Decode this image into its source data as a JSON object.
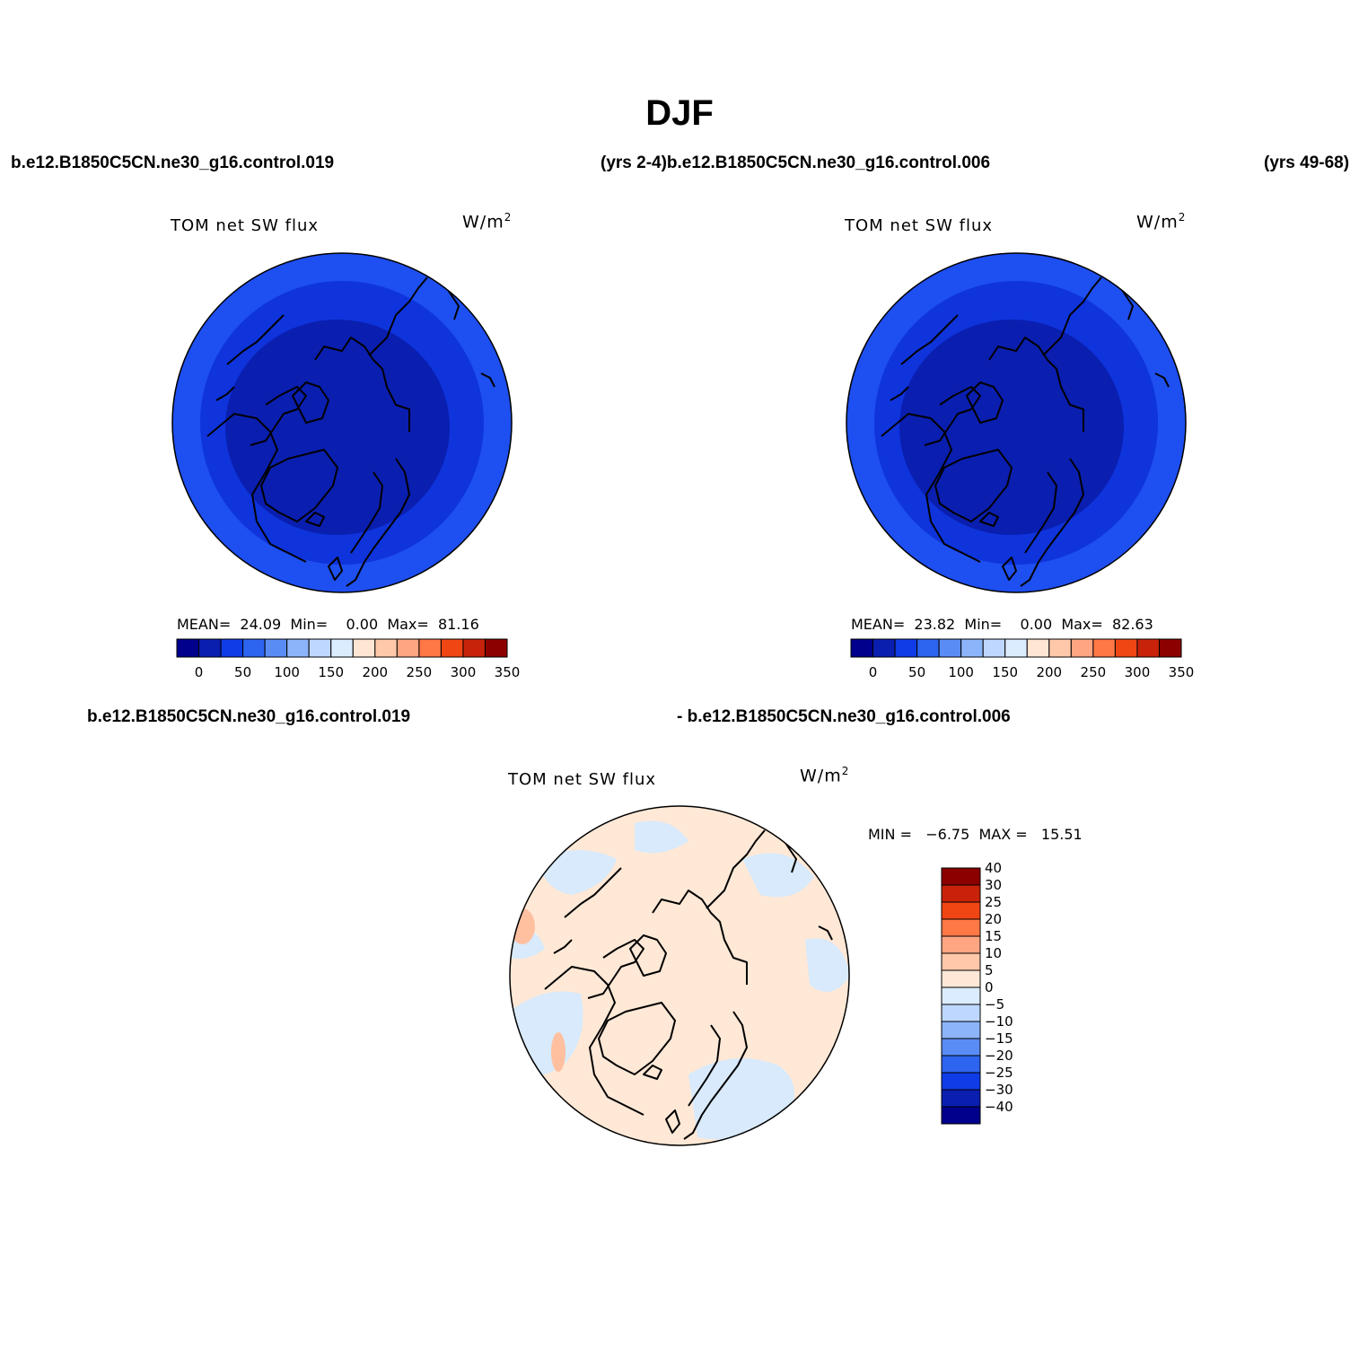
{
  "title": "DJF",
  "header": {
    "case_left": "b.e12.B1850C5CN.ne30_g16.control.019",
    "case_middle": "(yrs 2-4)b.e12.B1850C5CN.ne30_g16.control.006",
    "case_right": "(yrs 49-68)",
    "diff_left": "b.e12.B1850C5CN.ne30_g16.control.019",
    "diff_right": "- b.e12.B1850C5CN.ne30_g16.control.006"
  },
  "panels": [
    {
      "variable": "TOM net SW flux",
      "units": "W/m",
      "units_exp": "2",
      "stats": "MEAN=  24.09  Min=    0.00  Max=  81.16"
    },
    {
      "variable": "TOM net SW flux",
      "units": "W/m",
      "units_exp": "2",
      "stats": "MEAN=  23.82  Min=    0.00  Max=  82.63"
    },
    {
      "variable": "TOM net SW flux",
      "units": "W/m",
      "units_exp": "2",
      "stats": "MIN =   −6.75  MAX =   15.51"
    }
  ],
  "colorbar_main": {
    "colors": [
      "#00008c",
      "#0a1eaf",
      "#0f3ce6",
      "#2d64f0",
      "#5a8cf5",
      "#8cb4fa",
      "#bed7ff",
      "#dcecff",
      "#ffe6d2",
      "#ffc8aa",
      "#ffa582",
      "#ff7846",
      "#f04614",
      "#c8230a",
      "#8c0000"
    ],
    "ticks": [
      "0",
      "50",
      "100",
      "150",
      "200",
      "250",
      "300",
      "350"
    ]
  },
  "colorbar_diff": {
    "colors": [
      "#00008c",
      "#0a1eaf",
      "#0f3ce6",
      "#2d64f0",
      "#5a8cf5",
      "#8cb4fa",
      "#bed7ff",
      "#dcecff",
      "#ffe8d6",
      "#ffc8aa",
      "#ffa582",
      "#ff7846",
      "#f04614",
      "#c8230a",
      "#8c0000"
    ],
    "ticks": [
      "−40",
      "−30",
      "−25",
      "−20",
      "−15",
      "−10",
      "−5",
      "0",
      "5",
      "10",
      "15",
      "20",
      "25",
      "30",
      "40"
    ]
  },
  "map_colors": {
    "outer_ring": "#1e4ff0",
    "mid_ring": "#0f34dc",
    "inner": "#0a1fb0",
    "diff_positive": "#ffe8d6",
    "diff_negative": "#d8eafb",
    "diff_strong": "#ffc0a0"
  }
}
